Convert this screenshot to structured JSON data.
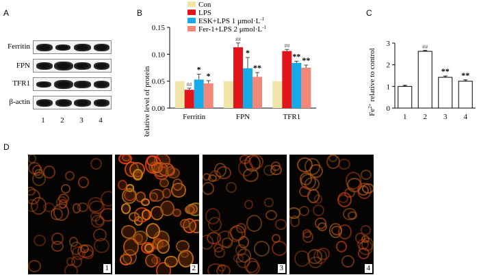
{
  "panels": {
    "a": "A",
    "b": "B",
    "c": "C",
    "d": "D"
  },
  "panel_a": {
    "rows": [
      "Ferritin",
      "FPN",
      "TFR1",
      "β-actin"
    ],
    "lanes": [
      "1",
      "2",
      "3",
      "4"
    ]
  },
  "colors": {
    "con": "#f0e6a8",
    "lps": "#e2151d",
    "esk": "#18aae6",
    "fer": "#f2877a",
    "fluor": "#c8631e"
  },
  "chart_data": [
    {
      "type": "bar",
      "panel": "B",
      "ylabel": "Relative level of protein",
      "ylim": [
        0,
        0.15
      ],
      "yticks": [
        "0.00",
        "0.05",
        "0.10",
        "0.15"
      ],
      "categories": [
        "Ferritin",
        "FPN",
        "TFR1"
      ],
      "legend": {
        "placement": "top"
      },
      "series": [
        {
          "name": "Con",
          "values": [
            0.05,
            0.05,
            0.05
          ],
          "errors": [
            0,
            0,
            0
          ],
          "annotations": [
            "",
            "",
            ""
          ]
        },
        {
          "name": "LPS",
          "values": [
            0.034,
            0.113,
            0.106
          ],
          "errors": [
            0.003,
            0.008,
            0.003
          ],
          "annotations": [
            "##",
            "##",
            "##"
          ]
        },
        {
          "name": "ESK+LPS 1 μmol·L-1",
          "values": [
            0.053,
            0.074,
            0.084
          ],
          "errors": [
            0.01,
            0.02,
            0.003
          ],
          "annotations": [
            "*",
            "*",
            "**"
          ]
        },
        {
          "name": "Fer-1+LPS 2 μmol·L-1",
          "values": [
            0.046,
            0.058,
            0.075
          ],
          "errors": [
            0.005,
            0.008,
            0.005
          ],
          "annotations": [
            "*",
            "**",
            "**"
          ]
        }
      ]
    },
    {
      "type": "bar",
      "panel": "C",
      "ylabel": "Fe2+ relative to control",
      "ylim": [
        0,
        3
      ],
      "yticks": [
        "0",
        "1",
        "2",
        "3"
      ],
      "categories": [
        "1",
        "2",
        "3",
        "4"
      ],
      "values": [
        1.0,
        2.62,
        1.42,
        1.24
      ],
      "errors": [
        0.05,
        0.04,
        0.06,
        0.06
      ],
      "annotations": [
        "",
        "##",
        "**",
        "**"
      ]
    }
  ],
  "panel_d": {
    "labels": [
      "1",
      "2",
      "3",
      "4"
    ],
    "intensity": [
      0.45,
      1.0,
      0.45,
      0.55
    ]
  }
}
